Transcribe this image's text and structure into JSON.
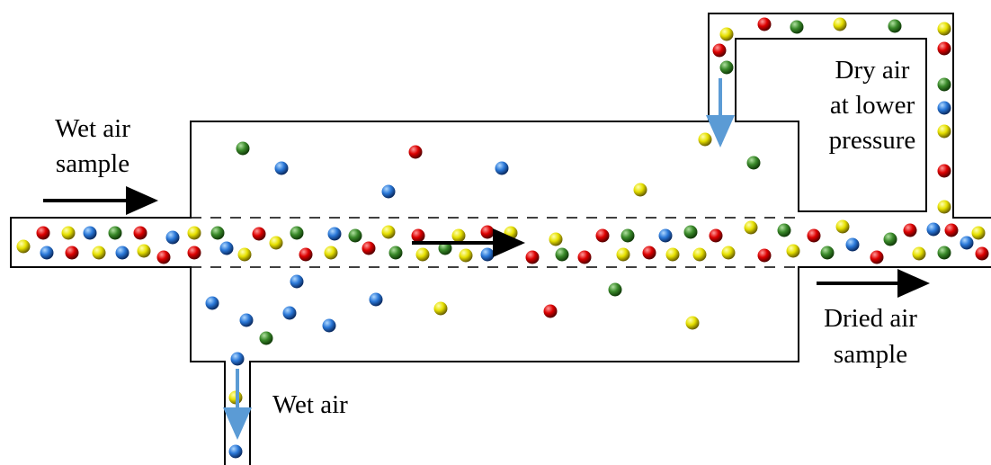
{
  "labels": [
    {
      "lines": [
        "Wet air",
        "sample"
      ]
    },
    {
      "lines": [
        "Dry air",
        "at lower",
        "pressure"
      ]
    },
    {
      "lines": [
        "Dried air",
        "sample"
      ]
    },
    {
      "lines": [
        "Wet air"
      ]
    }
  ]
}
